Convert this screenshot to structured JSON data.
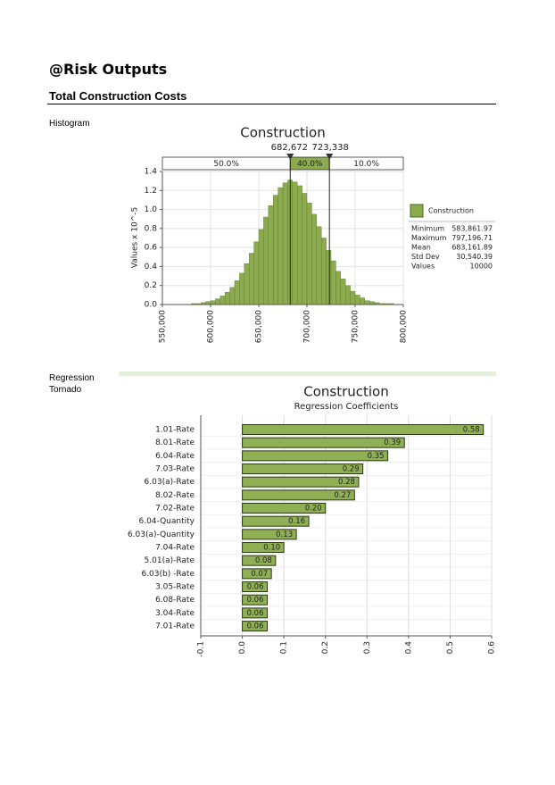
{
  "header": {
    "title": "@Risk Outputs",
    "subtitle": "Total Construction Costs"
  },
  "sections": [
    {
      "label": "Histogram"
    },
    {
      "label": "Regression Tornado"
    }
  ],
  "chart_data": [
    {
      "type": "histogram",
      "title": "Construction",
      "ylabel": "Values x 10^-5",
      "bins": [
        580000,
        585000,
        590000,
        595000,
        600000,
        605000,
        610000,
        615000,
        620000,
        625000,
        630000,
        635000,
        640000,
        645000,
        650000,
        655000,
        660000,
        665000,
        670000,
        675000,
        680000,
        685000,
        690000,
        695000,
        700000,
        705000,
        710000,
        715000,
        720000,
        725000,
        730000,
        735000,
        740000,
        745000,
        750000,
        755000,
        760000,
        765000,
        770000,
        775000,
        780000,
        785000,
        790000,
        795000,
        800000
      ],
      "series": [
        {
          "name": "Construction",
          "color": "#8bab4e",
          "values": [
            0.01,
            0.01,
            0.02,
            0.03,
            0.04,
            0.06,
            0.09,
            0.13,
            0.18,
            0.25,
            0.33,
            0.43,
            0.54,
            0.66,
            0.79,
            0.92,
            1.04,
            1.15,
            1.23,
            1.28,
            1.31,
            1.29,
            1.25,
            1.17,
            1.07,
            0.95,
            0.82,
            0.7,
            0.57,
            0.46,
            0.35,
            0.27,
            0.2,
            0.14,
            0.1,
            0.07,
            0.04,
            0.03,
            0.02,
            0.01,
            0.01,
            0.01,
            0,
            0
          ]
        }
      ],
      "xlim": [
        550000,
        800000
      ],
      "xticks": [
        {
          "value": 550000,
          "label": "550,000"
        },
        {
          "value": 600000,
          "label": "600,000"
        },
        {
          "value": 650000,
          "label": "650,000"
        },
        {
          "value": 700000,
          "label": "700,000"
        },
        {
          "value": 750000,
          "label": "750,000"
        },
        {
          "value": 800000,
          "label": "800,000"
        }
      ],
      "ylim": [
        0,
        1.4
      ],
      "yticks": [
        {
          "value": 0,
          "label": "0.0"
        },
        0.2,
        0.4,
        0.6,
        0.8,
        {
          "value": 1,
          "label": "1.0"
        },
        1.2,
        1.4
      ],
      "grid": true,
      "delimiters": [
        {
          "value": 682672,
          "label": "682,672"
        },
        {
          "value": 723338,
          "label": "723,338"
        }
      ],
      "regions": [
        {
          "value": 50,
          "label": "50.0%"
        },
        {
          "value": 40,
          "label": "40.0%"
        },
        {
          "value": 10,
          "label": "10.0%"
        }
      ],
      "stats": [
        {
          "name": "Minimum",
          "value": 583861.97,
          "label": "583,861.97"
        },
        {
          "name": "Maximum",
          "value": 797196.71,
          "label": "797,196.71"
        },
        {
          "name": "Mean",
          "value": 683161.89,
          "label": "683,161.89"
        },
        {
          "name": "Std Dev",
          "value": 30540.39,
          "label": "30,540.39"
        },
        {
          "name": "Values",
          "value": 10000
        }
      ]
    },
    {
      "type": "bar",
      "orientation": "horizontal",
      "title": "Construction",
      "subtitle": "Regression Coefficients",
      "categories": [
        "1.01-Rate",
        "8.01-Rate",
        "6.04-Rate",
        "7.03-Rate",
        "6.03(a)-Rate",
        "8.02-Rate",
        "7.02-Rate",
        "6.04-Quantity",
        "6.03(a)-Quantity",
        "7.04-Rate",
        "5.01(a)-Rate",
        "6.03(b) -Rate",
        "3.05-Rate",
        "6.08-Rate",
        "3.04-Rate",
        "7.01-Rate"
      ],
      "values": [
        0.58,
        0.39,
        0.35,
        0.29,
        0.28,
        0.27,
        0.2,
        0.16,
        0.13,
        0.1,
        0.08,
        0.07,
        0.06,
        0.06,
        0.06,
        0.06
      ],
      "value_labels": [
        "0.58",
        "0.39",
        "0.35",
        "0.29",
        "0.28",
        "0.27",
        "0.20",
        "0.16",
        "0.13",
        "0.10",
        "0.08",
        "0.07",
        "0.06",
        "0.06",
        "0.06",
        "0.06"
      ],
      "color": "#8fb055",
      "xlim": [
        -0.1,
        0.6
      ],
      "xticks": [
        -0.1,
        {
          "value": 0,
          "label": "0.0"
        },
        0.1,
        0.2,
        0.3,
        0.4,
        0.5,
        0.6
      ],
      "grid": true
    }
  ]
}
